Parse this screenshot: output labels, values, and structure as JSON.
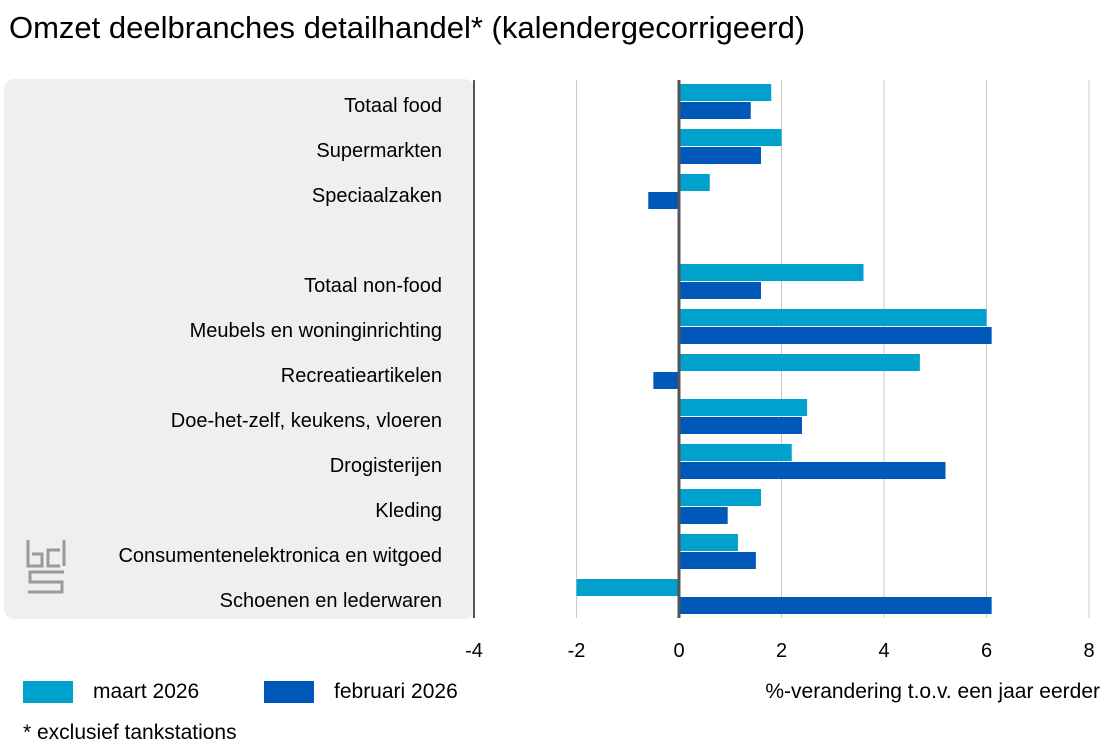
{
  "title": "Omzet deelbranches detailhandel* (kalendergecorrigeerd)",
  "footnote": "* exclusief tankstations",
  "logo_text": "cbs",
  "chart_data": {
    "type": "bar",
    "orientation": "horizontal",
    "categories": [
      "Totaal food",
      "Supermarkten",
      "Speciaalzaken",
      "",
      "Totaal non-food",
      "Meubels en woninginrichting",
      "Recreatieartikelen",
      "Doe-het-zelf, keukens, vloeren",
      "Drogisterijen",
      "Kleding",
      "Consumentenelektronica en witgoed",
      "Schoenen en lederwaren"
    ],
    "series": [
      {
        "name": "maart 2026",
        "color": "#00a1cd",
        "values": [
          1.8,
          2.0,
          0.6,
          null,
          3.6,
          6.0,
          4.7,
          2.5,
          2.2,
          1.6,
          1.15,
          -2.0
        ]
      },
      {
        "name": "februari 2026",
        "color": "#0058b8",
        "values": [
          1.4,
          1.6,
          -0.6,
          null,
          1.6,
          6.1,
          -0.5,
          2.4,
          5.2,
          0.95,
          1.5,
          6.1
        ]
      }
    ],
    "xlabel": "%-verandering t.o.v. een jaar eerder",
    "xlim": [
      -4,
      8
    ],
    "xticks": [
      -4,
      -2,
      0,
      2,
      4,
      6,
      8
    ],
    "grid": true,
    "legend_position": "bottom-left"
  }
}
